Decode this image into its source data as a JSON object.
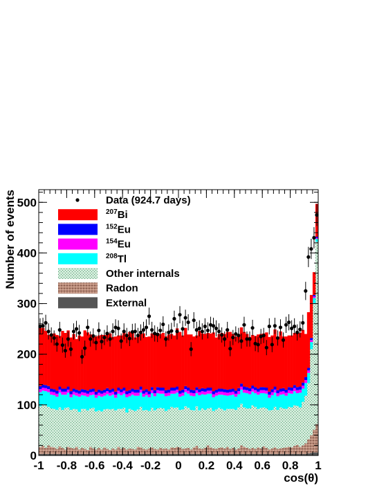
{
  "chart_data": {
    "type": "bar",
    "xlabel": "cos(θ)",
    "ylabel": "Number of events",
    "xlim": [
      -1,
      1
    ],
    "ylim": [
      0,
      525
    ],
    "stacked": true,
    "grid": false,
    "legend_position": "top-left",
    "x_ticks": [
      "-1",
      "-0.8",
      "-0.6",
      "-0.4",
      "-0.2",
      "0",
      "0.2",
      "0.4",
      "0.6",
      "0.8",
      "1"
    ],
    "y_ticks": [
      "0",
      "100",
      "200",
      "300",
      "400",
      "500"
    ],
    "legend": [
      {
        "key": "data",
        "sup": "",
        "label": "Data (924.7 days)",
        "marker": "point",
        "color": "#000000"
      },
      {
        "key": "bi207",
        "sup": "207",
        "label": "Bi",
        "marker": "fill",
        "color": "#ff0000"
      },
      {
        "key": "eu152",
        "sup": "152",
        "label": "Eu",
        "marker": "fill",
        "color": "#0000ff"
      },
      {
        "key": "eu154",
        "sup": "154",
        "label": "Eu",
        "marker": "fill",
        "color": "#ff00ff"
      },
      {
        "key": "tl208",
        "sup": "208",
        "label": "Tl",
        "marker": "fill",
        "color": "#00ffff"
      },
      {
        "key": "other",
        "sup": "",
        "label": "Other internals",
        "marker": "hatch",
        "color": "#8fc9a8"
      },
      {
        "key": "radon",
        "sup": "",
        "label": "Radon",
        "marker": "hatch",
        "color": "#a07a6a"
      },
      {
        "key": "external",
        "sup": "",
        "label": "External",
        "marker": "fill",
        "color": "#555555"
      }
    ],
    "x": [
      -0.99,
      -0.97,
      -0.95,
      -0.93,
      -0.91,
      -0.89,
      -0.87,
      -0.85,
      -0.83,
      -0.81,
      -0.79,
      -0.77,
      -0.75,
      -0.73,
      -0.71,
      -0.69,
      -0.67,
      -0.65,
      -0.63,
      -0.61,
      -0.59,
      -0.57,
      -0.55,
      -0.53,
      -0.51,
      -0.49,
      -0.47,
      -0.45,
      -0.43,
      -0.41,
      -0.39,
      -0.37,
      -0.35,
      -0.33,
      -0.31,
      -0.29,
      -0.27,
      -0.25,
      -0.23,
      -0.21,
      -0.19,
      -0.17,
      -0.15,
      -0.13,
      -0.11,
      -0.09,
      -0.07,
      -0.05,
      -0.03,
      -0.01,
      0.01,
      0.03,
      0.05,
      0.07,
      0.09,
      0.11,
      0.13,
      0.15,
      0.17,
      0.19,
      0.21,
      0.23,
      0.25,
      0.27,
      0.29,
      0.31,
      0.33,
      0.35,
      0.37,
      0.39,
      0.41,
      0.43,
      0.45,
      0.47,
      0.49,
      0.51,
      0.53,
      0.55,
      0.57,
      0.59,
      0.61,
      0.63,
      0.65,
      0.67,
      0.69,
      0.71,
      0.73,
      0.75,
      0.77,
      0.79,
      0.81,
      0.83,
      0.85,
      0.87,
      0.89,
      0.91,
      0.93,
      0.95,
      0.97,
      0.99
    ],
    "series": [
      {
        "name": "External",
        "key": "external",
        "color": "#555555",
        "values": [
          3,
          3,
          3,
          3,
          3,
          3,
          3,
          3,
          3,
          3,
          3,
          3,
          3,
          3,
          3,
          3,
          3,
          3,
          3,
          3,
          3,
          3,
          3,
          3,
          3,
          3,
          3,
          3,
          3,
          3,
          3,
          3,
          3,
          3,
          3,
          3,
          3,
          3,
          3,
          3,
          3,
          3,
          3,
          3,
          3,
          3,
          3,
          3,
          3,
          3,
          3,
          3,
          3,
          3,
          3,
          3,
          3,
          3,
          3,
          3,
          3,
          3,
          3,
          3,
          3,
          3,
          3,
          3,
          3,
          3,
          3,
          3,
          3,
          3,
          3,
          3,
          3,
          3,
          3,
          3,
          3,
          3,
          3,
          3,
          3,
          3,
          3,
          3,
          3,
          3,
          3,
          3,
          3,
          3,
          3,
          3,
          4,
          5,
          6,
          6
        ]
      },
      {
        "name": "Radon",
        "key": "radon",
        "color": "#a07a6a",
        "values": [
          14,
          16,
          12,
          17,
          14,
          13,
          10,
          15,
          12,
          9,
          14,
          12,
          11,
          14,
          9,
          12,
          10,
          8,
          14,
          11,
          9,
          12,
          9,
          13,
          10,
          8,
          11,
          9,
          14,
          10,
          12,
          9,
          11,
          10,
          9,
          14,
          13,
          10,
          9,
          11,
          13,
          10,
          9,
          12,
          10,
          11,
          9,
          13,
          12,
          14,
          13,
          10,
          11,
          12,
          9,
          13,
          16,
          11,
          10,
          12,
          17,
          13,
          11,
          10,
          12,
          13,
          11,
          14,
          10,
          12,
          9,
          11,
          17,
          14,
          12,
          10,
          12,
          10,
          13,
          11,
          15,
          12,
          9,
          11,
          13,
          10,
          11,
          12,
          13,
          14,
          13,
          16,
          18,
          14,
          17,
          21,
          28,
          35,
          45,
          56
        ]
      },
      {
        "name": "Other internals",
        "key": "other",
        "color": "#8fc9a8",
        "values": [
          80,
          82,
          84,
          76,
          76,
          76,
          77,
          77,
          75,
          82,
          78,
          75,
          78,
          74,
          74,
          77,
          79,
          78,
          76,
          80,
          75,
          74,
          75,
          75,
          79,
          80,
          78,
          77,
          75,
          79,
          79,
          73,
          78,
          77,
          76,
          74,
          80,
          76,
          78,
          74,
          78,
          76,
          81,
          79,
          80,
          74,
          79,
          80,
          79,
          78,
          74,
          78,
          83,
          79,
          78,
          73,
          78,
          75,
          80,
          75,
          73,
          78,
          74,
          78,
          79,
          76,
          75,
          75,
          79,
          77,
          78,
          81,
          82,
          78,
          78,
          80,
          84,
          83,
          76,
          80,
          77,
          78,
          77,
          76,
          80,
          77,
          81,
          78,
          76,
          79,
          79,
          80,
          77,
          78,
          86,
          94,
          111,
          170,
          250,
          360
        ]
      },
      {
        "name": "208Tl",
        "key": "tl208",
        "color": "#00ffff",
        "values": [
          28,
          27,
          28,
          29,
          27,
          27,
          26,
          29,
          30,
          26,
          29,
          25,
          28,
          27,
          30,
          27,
          26,
          27,
          26,
          26,
          27,
          29,
          29,
          27,
          29,
          27,
          28,
          25,
          30,
          27,
          28,
          30,
          25,
          30,
          30,
          27,
          28,
          27,
          29,
          27,
          29,
          28,
          30,
          28,
          29,
          29,
          27,
          26,
          28,
          29,
          26,
          27,
          28,
          28,
          28,
          28,
          26,
          30,
          28,
          30,
          29,
          28,
          27,
          27,
          26,
          28,
          30,
          26,
          27,
          28,
          26,
          26,
          28,
          29,
          30,
          28,
          27,
          27,
          28,
          29,
          28,
          29,
          25,
          29,
          28,
          27,
          25,
          28,
          26,
          27,
          27,
          28,
          25,
          29,
          26,
          25,
          20,
          14,
          10,
          6
        ]
      },
      {
        "name": "154Eu",
        "key": "eu154",
        "color": "#ff00ff",
        "values": [
          6,
          6,
          6,
          6,
          6,
          6,
          6,
          6,
          6,
          6,
          6,
          6,
          6,
          6,
          6,
          6,
          6,
          6,
          6,
          6,
          6,
          6,
          6,
          6,
          6,
          6,
          6,
          6,
          6,
          6,
          6,
          6,
          6,
          6,
          6,
          6,
          6,
          6,
          6,
          6,
          6,
          6,
          6,
          6,
          6,
          6,
          6,
          6,
          6,
          6,
          6,
          6,
          6,
          6,
          6,
          6,
          6,
          6,
          6,
          6,
          6,
          6,
          6,
          6,
          6,
          6,
          6,
          6,
          6,
          6,
          6,
          6,
          6,
          6,
          6,
          6,
          6,
          6,
          6,
          6,
          6,
          6,
          6,
          6,
          6,
          6,
          6,
          6,
          6,
          6,
          6,
          6,
          6,
          6,
          6,
          6,
          5,
          4,
          3,
          2
        ]
      },
      {
        "name": "152Eu",
        "key": "eu152",
        "color": "#0000ff",
        "values": [
          6,
          6,
          6,
          6,
          6,
          6,
          6,
          6,
          6,
          6,
          6,
          6,
          6,
          6,
          6,
          6,
          6,
          6,
          6,
          6,
          6,
          6,
          6,
          6,
          6,
          6,
          6,
          6,
          6,
          6,
          6,
          6,
          6,
          6,
          6,
          6,
          6,
          6,
          6,
          6,
          6,
          6,
          6,
          6,
          6,
          6,
          6,
          6,
          6,
          6,
          6,
          6,
          6,
          6,
          6,
          6,
          6,
          6,
          6,
          6,
          6,
          6,
          6,
          6,
          6,
          6,
          6,
          6,
          6,
          6,
          6,
          6,
          6,
          6,
          6,
          6,
          6,
          6,
          6,
          6,
          6,
          6,
          6,
          6,
          6,
          6,
          6,
          6,
          6,
          6,
          6,
          6,
          6,
          6,
          6,
          6,
          5,
          4,
          3,
          2
        ]
      },
      {
        "name": "207Bi",
        "key": "bi207",
        "color": "#ff0000",
        "values": [
          115,
          112,
          107,
          101,
          108,
          110,
          110,
          100,
          114,
          110,
          111,
          106,
          108,
          100,
          109,
          104,
          117,
          115,
          108,
          103,
          109,
          107,
          110,
          108,
          106,
          111,
          102,
          109,
          103,
          106,
          109,
          108,
          115,
          111,
          103,
          105,
          110,
          113,
          103,
          108,
          106,
          112,
          107,
          106,
          108,
          106,
          109,
          106,
          103,
          115,
          116,
          107,
          115,
          105,
          109,
          106,
          102,
          115,
          108,
          108,
          108,
          107,
          116,
          103,
          108,
          110,
          109,
          114,
          113,
          108,
          107,
          102,
          111,
          108,
          105,
          101,
          100,
          101,
          107,
          105,
          106,
          109,
          108,
          106,
          113,
          102,
          113,
          102,
          105,
          102,
          103,
          103,
          107,
          106,
          104,
          85,
          110,
          85,
          45,
          65
        ]
      }
    ],
    "data_points": [
      255,
      256,
      262,
      245,
      238,
      232,
      220,
      248,
      218,
      207,
      230,
      210,
      245,
      250,
      242,
      195,
      212,
      253,
      230,
      236,
      223,
      247,
      225,
      233,
      241,
      230,
      245,
      253,
      251,
      226,
      245,
      237,
      231,
      244,
      245,
      237,
      243,
      248,
      253,
      275,
      248,
      241,
      239,
      247,
      259,
      230,
      243,
      246,
      270,
      245,
      278,
      250,
      272,
      263,
      210,
      267,
      248,
      251,
      245,
      255,
      247,
      258,
      256,
      251,
      245,
      238,
      230,
      248,
      211,
      233,
      240,
      237,
      226,
      258,
      230,
      230,
      252,
      221,
      219,
      235,
      237,
      213,
      255,
      219,
      256,
      232,
      253,
      228,
      258,
      263,
      251,
      255,
      243,
      249,
      262,
      325,
      392,
      408,
      430,
      475
    ],
    "data_errors": [
      16,
      16,
      16,
      16,
      15,
      15,
      15,
      16,
      15,
      14,
      15,
      14,
      16,
      16,
      16,
      14,
      15,
      16,
      15,
      15,
      15,
      16,
      15,
      15,
      16,
      15,
      16,
      16,
      16,
      15,
      16,
      15,
      15,
      16,
      16,
      15,
      16,
      16,
      16,
      17,
      16,
      16,
      15,
      16,
      16,
      15,
      16,
      16,
      16,
      16,
      17,
      16,
      16,
      16,
      14,
      16,
      16,
      16,
      16,
      16,
      16,
      16,
      16,
      16,
      16,
      15,
      15,
      16,
      15,
      15,
      15,
      15,
      15,
      16,
      15,
      15,
      16,
      15,
      15,
      15,
      15,
      15,
      16,
      15,
      16,
      15,
      16,
      15,
      16,
      16,
      16,
      16,
      16,
      16,
      16,
      18,
      20,
      20,
      21,
      22
    ]
  }
}
